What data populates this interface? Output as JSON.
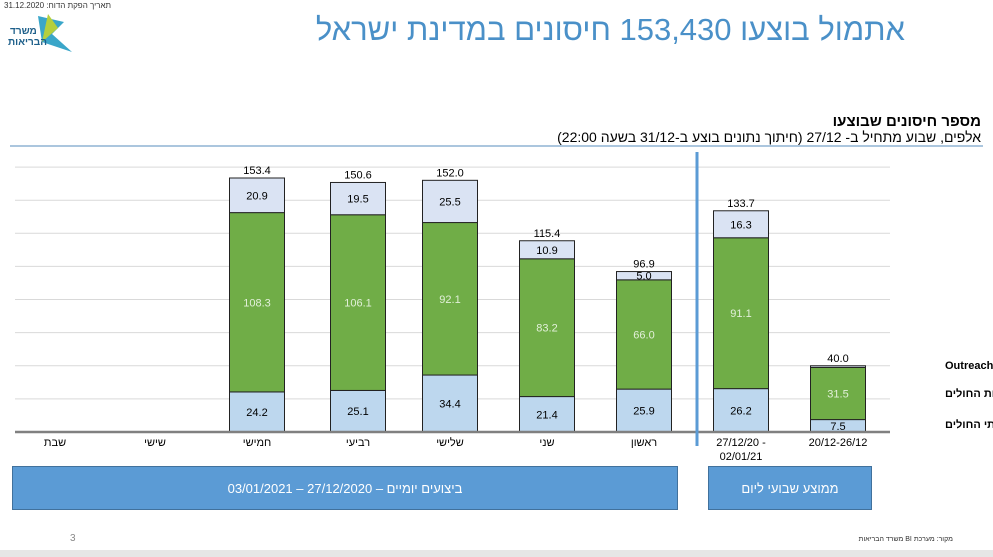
{
  "header": {
    "report_date": "תאריך הפקת הדוח: 31.12.2020",
    "title": "אתמול בוצעו 153,430 חיסונים במדינת ישראל",
    "logo_text": "משרד הבריאות"
  },
  "chart_data": {
    "type": "bar",
    "stacked": true,
    "title": "מספר חיסונים שבוצעו",
    "subtitle": "אלפים, שבוע מתחיל ב- 27/12 (חיתוך נתונים בוצע ב-31/12 בשעה 22:00)",
    "categories": [
      "שבת",
      "שישי",
      "חמישי",
      "רביעי",
      "שלישי",
      "שני",
      "ראשון",
      "27/12/20 - 02/01/21",
      "20/12-26/12"
    ],
    "series": [
      {
        "name": "בתי החולים",
        "color": "#bdd7ee",
        "values": [
          null,
          null,
          24.2,
          25.1,
          34.4,
          21.4,
          25.9,
          26.2,
          7.5
        ]
      },
      {
        "name": "קופות החולים",
        "color": "#70ad47",
        "values": [
          null,
          null,
          108.3,
          106.1,
          92.1,
          83.2,
          66.0,
          91.1,
          31.5
        ]
      },
      {
        "name": "Outreach",
        "color": "#dae3f3",
        "values": [
          null,
          null,
          20.9,
          19.5,
          25.5,
          10.9,
          5.0,
          16.3,
          1.0
        ]
      }
    ],
    "totals": [
      null,
      null,
      153.4,
      150.6,
      152.0,
      115.4,
      96.9,
      133.7,
      40.0
    ],
    "ylim": [
      0,
      160
    ],
    "grid": true,
    "legend_placement": "right",
    "groups": [
      {
        "label": "ביצועים יומיים – 27/12/2020 – 03/01/2021"
      },
      {
        "label": "ממוצע שבועי ליום"
      }
    ]
  },
  "footer": {
    "source": "מקור: מערכת BI משרד הבריאות",
    "page_number": "3"
  }
}
